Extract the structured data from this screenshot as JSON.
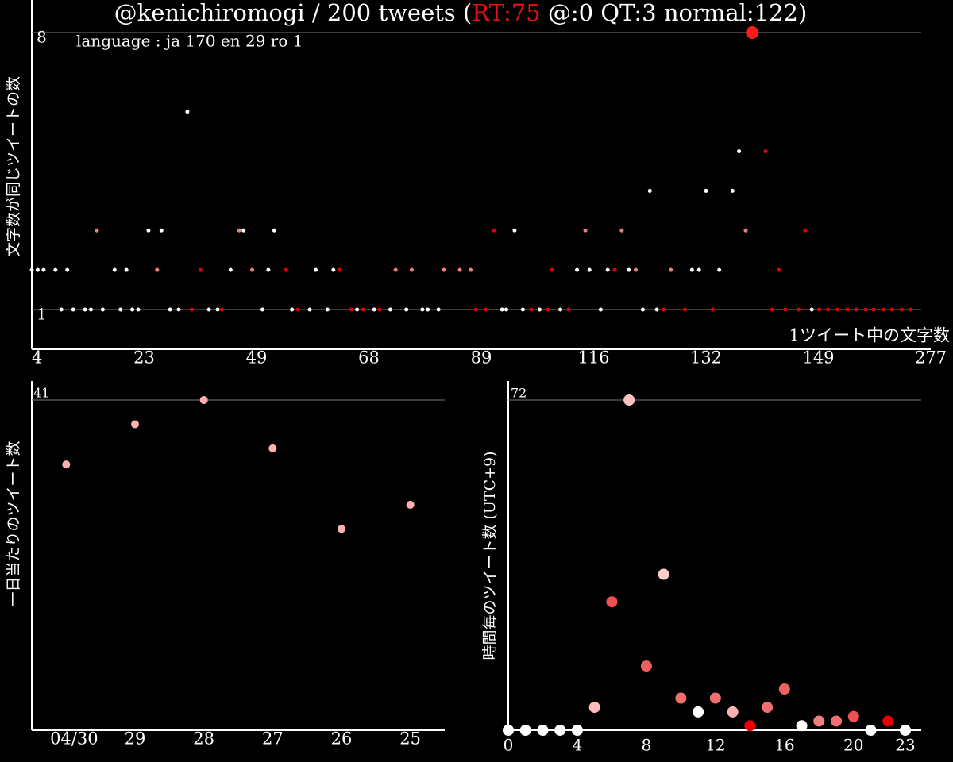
{
  "chart_data": [
    {
      "type": "scatter",
      "title_parts": [
        "@kenichiromogi / 200 tweets (",
        "RT:75",
        " @:0 QT:3 normal:122)"
      ],
      "title_highlight_color": "#e01010",
      "subtitle": "language : ja 170 en 29 ro 1",
      "ylabel": "文字数が同じツイートの数",
      "xlabel": "1ツイート中の文字数",
      "xlim": [
        4,
        277
      ],
      "xticks": [
        4,
        23,
        49,
        68,
        89,
        116,
        132,
        149,
        277
      ],
      "ylim": [
        1,
        8
      ],
      "yticks": [
        8,
        1
      ],
      "grid": true,
      "series": [
        {
          "color": "#ffffff",
          "size": 2.5,
          "x": [
            4,
            5,
            6,
            8,
            10,
            18,
            20,
            9,
            11,
            13,
            14,
            16,
            19,
            21,
            22,
            29,
            31,
            38,
            40,
            50,
            55,
            58,
            61,
            66,
            69,
            72,
            75,
            78,
            79,
            81,
            94,
            95,
            99,
            103,
            108,
            117,
            123,
            125,
            148,
            43,
            51,
            59,
            62,
            112,
            115,
            118,
            121,
            130,
            131,
            134,
            24,
            27,
            46,
            52,
            97,
            124,
            132,
            136,
            137,
            33
          ],
          "values": [
            2,
            2,
            2,
            2,
            2,
            2,
            2,
            1,
            1,
            1,
            1,
            1,
            1,
            1,
            1,
            1,
            1,
            1,
            1,
            1,
            1,
            1,
            1,
            1,
            1,
            1,
            1,
            1,
            1,
            1,
            1,
            1,
            1,
            1,
            1,
            1,
            1,
            1,
            1,
            2,
            2,
            2,
            2,
            2,
            2,
            2,
            2,
            2,
            2,
            2,
            3,
            3,
            3,
            3,
            3,
            4,
            4,
            4,
            5,
            6
          ]
        },
        {
          "color": "#f08080",
          "size": 2.5,
          "x": [
            26,
            48,
            73,
            76,
            82,
            85,
            87,
            122,
            127,
            15,
            45,
            114,
            120,
            138
          ],
          "values": [
            2,
            2,
            2,
            2,
            2,
            2,
            2,
            2,
            2,
            3,
            3,
            3,
            3,
            3
          ]
        },
        {
          "color": "#e00000",
          "size": 2.5,
          "x": [
            36,
            54,
            63,
            106,
            119,
            143,
            34,
            41,
            56,
            65,
            67,
            70,
            88,
            90,
            101,
            105,
            110,
            126,
            129,
            133,
            142,
            144,
            146,
            150,
            160,
            171,
            182,
            192,
            203,
            212,
            223,
            233,
            244,
            254,
            92,
            147,
            141
          ],
          "values": [
            2,
            2,
            2,
            2,
            2,
            2,
            1,
            1,
            1,
            1,
            1,
            1,
            1,
            1,
            1,
            1,
            1,
            1,
            1,
            1,
            1,
            1,
            1,
            1,
            1,
            1,
            1,
            1,
            1,
            1,
            1,
            1,
            1,
            1,
            3,
            3,
            5
          ]
        },
        {
          "color": "#ff1a1a",
          "size": 8,
          "x": [
            139
          ],
          "values": [
            8
          ]
        }
      ]
    },
    {
      "type": "dot",
      "ylabel": "一日当たりのツイート数",
      "categories": [
        "04/30",
        "29",
        "28",
        "27",
        "26",
        "25"
      ],
      "values": [
        33,
        38,
        41,
        35,
        25,
        28
      ],
      "color": "#ffb0b0",
      "ylim": [
        0,
        41
      ],
      "yticks": [
        41
      ],
      "grid": true
    },
    {
      "type": "scatter",
      "ylabel": "時間毎のツイート数 (UTC+9)",
      "x": [
        0,
        1,
        2,
        3,
        4,
        5,
        6,
        7,
        8,
        9,
        10,
        11,
        12,
        13,
        14,
        15,
        16,
        17,
        18,
        19,
        20,
        21,
        22,
        23
      ],
      "values": [
        0,
        0,
        0,
        0,
        0,
        5,
        28,
        72,
        14,
        34,
        7,
        4,
        7,
        4,
        1,
        5,
        9,
        1,
        2,
        2,
        3,
        0,
        2,
        0
      ],
      "colors": [
        "#ffffff",
        "#ffffff",
        "#ffffff",
        "#ffffff",
        "#ffffff",
        "#ffbcbc",
        "#f05050",
        "#ffc0c0",
        "#f06060",
        "#ffcccc",
        "#f07070",
        "#ffffff",
        "#f07070",
        "#ffb0b0",
        "#ee0000",
        "#f07070",
        "#f06060",
        "#ffffff",
        "#f08080",
        "#f07070",
        "#f05050",
        "#ffffff",
        "#e80000",
        "#ffffff"
      ],
      "xlim": [
        0,
        23
      ],
      "xticks": [
        0,
        4,
        8,
        12,
        16,
        20,
        23
      ],
      "ylim": [
        0,
        72
      ],
      "yticks": [
        72
      ],
      "grid": true
    }
  ]
}
